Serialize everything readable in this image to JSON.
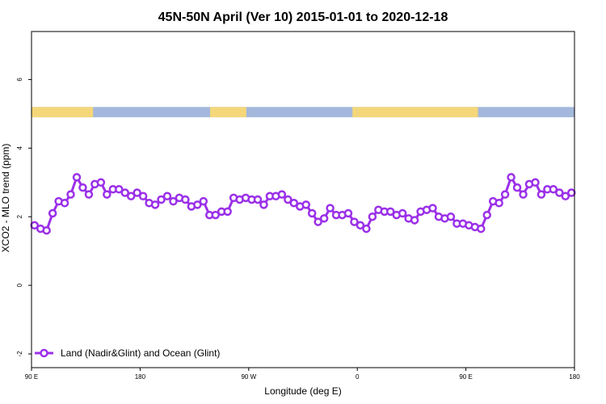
{
  "chart_data": {
    "type": "line",
    "title": "45N-50N April (Ver 10)   2015-01-01 to 2020-12-18",
    "xlabel": "Longitude (deg E)",
    "ylabel": "XCO2 - MLO trend (ppm)",
    "xlim": [
      90,
      540
    ],
    "ylim": [
      -2.4,
      7.4
    ],
    "x_ticks": [
      {
        "value": 90,
        "label": "90 E"
      },
      {
        "value": 180,
        "label": "180"
      },
      {
        "value": 270,
        "label": "90 W"
      },
      {
        "value": 360,
        "label": "0"
      },
      {
        "value": 450,
        "label": "90 E"
      },
      {
        "value": 540,
        "label": "180"
      }
    ],
    "y_ticks": [
      -2,
      0,
      2,
      4,
      6
    ],
    "grid": false,
    "legend_position": "bottom-left",
    "colors": {
      "series": "#9b30e8",
      "land": "#f5d77a",
      "ocean": "#a3b8dc"
    },
    "land_ocean_strip": {
      "y_range": [
        4.9,
        5.2
      ],
      "land_segments": [
        [
          90,
          141
        ],
        [
          238,
          268
        ],
        [
          356,
          360
        ],
        [
          360,
          460
        ]
      ]
    },
    "series": [
      {
        "name": "Land (Nadir&Glint) and Ocean (Glint)",
        "x": [
          92.5,
          97.5,
          102.5,
          107.5,
          112.5,
          117.5,
          122.5,
          127.5,
          132.5,
          137.5,
          142.5,
          147.5,
          152.5,
          157.5,
          162.5,
          167.5,
          172.5,
          177.5,
          182.5,
          187.5,
          192.5,
          197.5,
          202.5,
          207.5,
          212.5,
          217.5,
          222.5,
          227.5,
          232.5,
          237.5,
          242.5,
          247.5,
          252.5,
          257.5,
          262.5,
          267.5,
          272.5,
          277.5,
          282.5,
          287.5,
          292.5,
          297.5,
          302.5,
          307.5,
          312.5,
          317.5,
          322.5,
          327.5,
          332.5,
          337.5,
          342.5,
          347.5,
          352.5,
          357.5,
          362.5,
          367.5,
          372.5,
          377.5,
          382.5,
          387.5,
          392.5,
          397.5,
          402.5,
          407.5,
          412.5,
          417.5,
          422.5,
          427.5,
          432.5,
          437.5,
          442.5,
          447.5,
          452.5,
          457.5,
          462.5,
          467.5,
          472.5,
          477.5,
          482.5,
          487.5,
          492.5,
          497.5,
          502.5,
          507.5,
          512.5,
          517.5,
          522.5,
          527.5,
          532.5,
          537.5
        ],
        "values": [
          1.75,
          1.65,
          1.6,
          2.1,
          2.45,
          2.4,
          2.65,
          3.15,
          2.85,
          2.65,
          2.95,
          3.0,
          2.65,
          2.8,
          2.8,
          2.7,
          2.6,
          2.7,
          2.6,
          2.4,
          2.35,
          2.5,
          2.6,
          2.45,
          2.55,
          2.5,
          2.3,
          2.35,
          2.45,
          2.05,
          2.05,
          2.15,
          2.15,
          2.55,
          2.5,
          2.55,
          2.5,
          2.5,
          2.35,
          2.6,
          2.6,
          2.65,
          2.5,
          2.4,
          2.3,
          2.35,
          2.1,
          1.85,
          1.95,
          2.25,
          2.05,
          2.05,
          2.1,
          1.85,
          1.75,
          1.65,
          2.0,
          2.2,
          2.15,
          2.15,
          2.05,
          2.1,
          1.95,
          1.9,
          2.15,
          2.2,
          2.25,
          2.0,
          1.95,
          2.0,
          1.8,
          1.8,
          1.75,
          1.7,
          1.65,
          2.05,
          2.45,
          2.4,
          2.65,
          3.15,
          2.85,
          2.65,
          2.95,
          3.0,
          2.65,
          2.8,
          2.8,
          2.7,
          2.6,
          2.7
        ]
      }
    ]
  }
}
